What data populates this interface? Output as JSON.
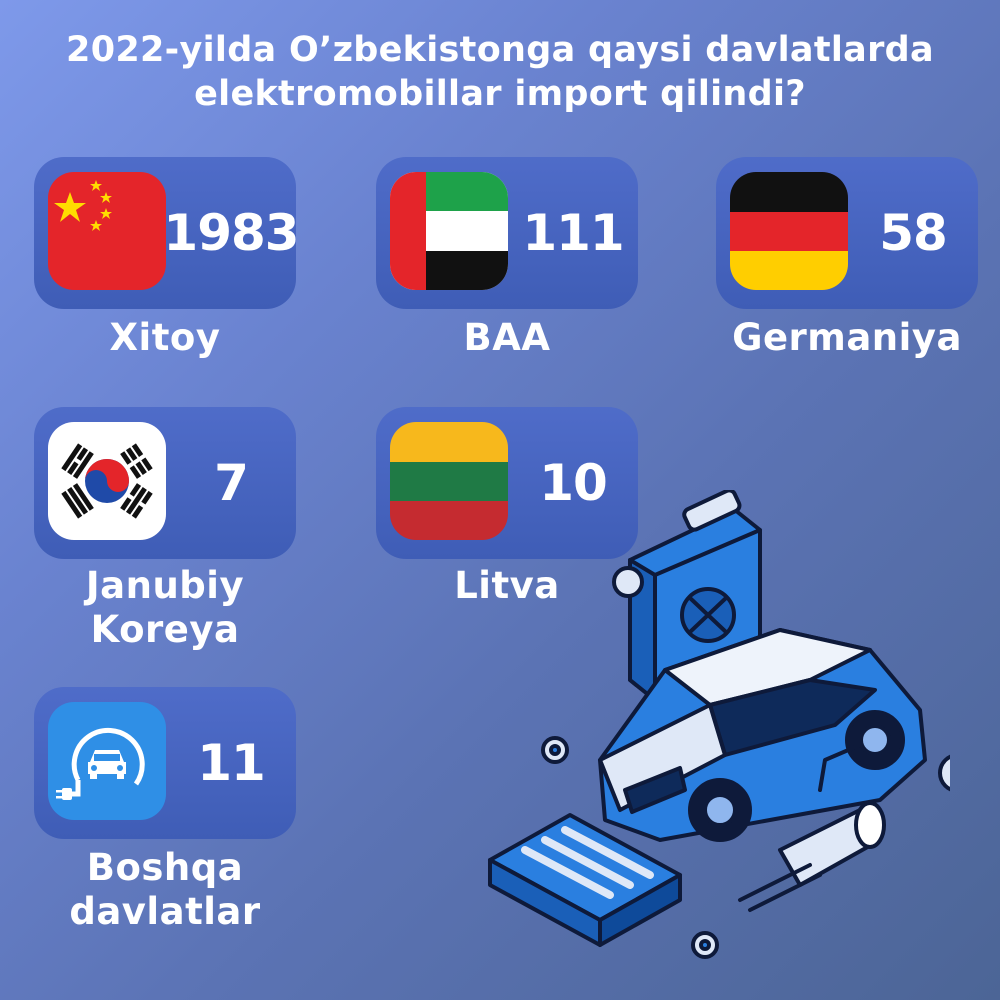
{
  "title": {
    "line1": "2022-yilda O’zbekistonga qaysi davlatlarda",
    "line2": "elektromobillar import qilindi?"
  },
  "countries": [
    {
      "name": "Xitoy",
      "value": "1983",
      "icon": "china-flag-icon"
    },
    {
      "name": "BAA",
      "value": "111",
      "icon": "uae-flag-icon"
    },
    {
      "name": "Germaniya",
      "value": "58",
      "icon": "germany-flag-icon"
    },
    {
      "name_line1": "Janubiy",
      "name_line2": "Koreya",
      "value": "7",
      "icon": "south-korea-flag-icon"
    },
    {
      "name": "Litva",
      "value": "10",
      "icon": "lithuania-flag-icon"
    },
    {
      "name_line1": "Boshqa",
      "name_line2": "davlatlar",
      "value": "11",
      "icon": "ev-charging-icon"
    }
  ],
  "colors": {
    "card": "#4563be",
    "ev_icon_bg": "#2f8fe6",
    "illustration_accent": "#2a7fe0"
  }
}
